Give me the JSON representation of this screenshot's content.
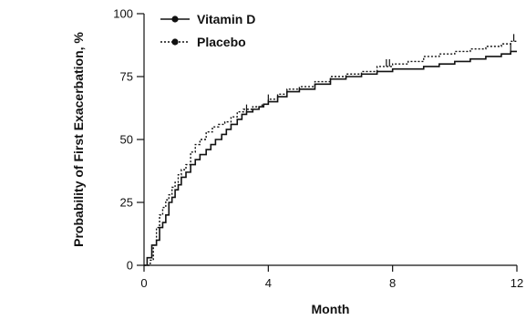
{
  "chart_data": {
    "type": "line",
    "xlabel": "Month",
    "ylabel": "Probability of First Exacerbation, %",
    "xlim": [
      0,
      12
    ],
    "ylim": [
      0,
      100
    ],
    "xticks": [
      0,
      4,
      8,
      12
    ],
    "yticks": [
      0,
      25,
      50,
      75,
      100
    ],
    "grid": false,
    "legend_position": "top-left",
    "series": [
      {
        "name": "Vitamin D",
        "style": "solid",
        "color": "#111111",
        "x": [
          0,
          0.1,
          0.25,
          0.4,
          0.5,
          0.6,
          0.7,
          0.8,
          0.9,
          1.0,
          1.1,
          1.2,
          1.35,
          1.5,
          1.65,
          1.8,
          2.0,
          2.15,
          2.3,
          2.5,
          2.65,
          2.8,
          3.0,
          3.15,
          3.3,
          3.5,
          3.7,
          3.85,
          4.0,
          4.3,
          4.6,
          5.0,
          5.5,
          6.0,
          6.5,
          7.0,
          7.5,
          8.0,
          8.5,
          9.0,
          9.5,
          10.0,
          10.5,
          11.0,
          11.5,
          11.8,
          12.0
        ],
        "y": [
          0,
          3,
          8,
          10,
          15,
          17,
          20,
          25,
          27,
          30,
          32,
          35,
          37,
          40,
          42,
          44,
          46,
          48,
          50,
          52,
          54,
          56,
          58,
          60,
          61,
          62,
          63,
          64,
          65,
          67,
          69,
          70,
          72,
          74,
          75,
          76,
          77,
          78,
          78,
          79,
          80,
          81,
          82,
          83,
          84,
          85,
          85
        ]
      },
      {
        "name": "Placebo",
        "style": "dotted",
        "color": "#111111",
        "x": [
          0,
          0.2,
          0.3,
          0.4,
          0.5,
          0.6,
          0.7,
          0.8,
          0.9,
          1.0,
          1.1,
          1.2,
          1.35,
          1.5,
          1.65,
          1.8,
          2.0,
          2.2,
          2.4,
          2.6,
          2.8,
          3.0,
          3.2,
          3.5,
          3.8,
          4.0,
          4.3,
          4.6,
          5.0,
          5.5,
          6.0,
          6.5,
          7.0,
          7.5,
          8.0,
          8.5,
          9.0,
          9.5,
          10.0,
          10.5,
          11.0,
          11.5,
          11.8,
          12.0
        ],
        "y": [
          0,
          2,
          8,
          15,
          20,
          23,
          26,
          28,
          31,
          33,
          36,
          38,
          40,
          45,
          48,
          50,
          53,
          55,
          56,
          57,
          59,
          61,
          62,
          63,
          64,
          66,
          68,
          70,
          71,
          73,
          75,
          76,
          77,
          79,
          80,
          81,
          83,
          84,
          85,
          86,
          87,
          88,
          89,
          89
        ]
      }
    ]
  }
}
